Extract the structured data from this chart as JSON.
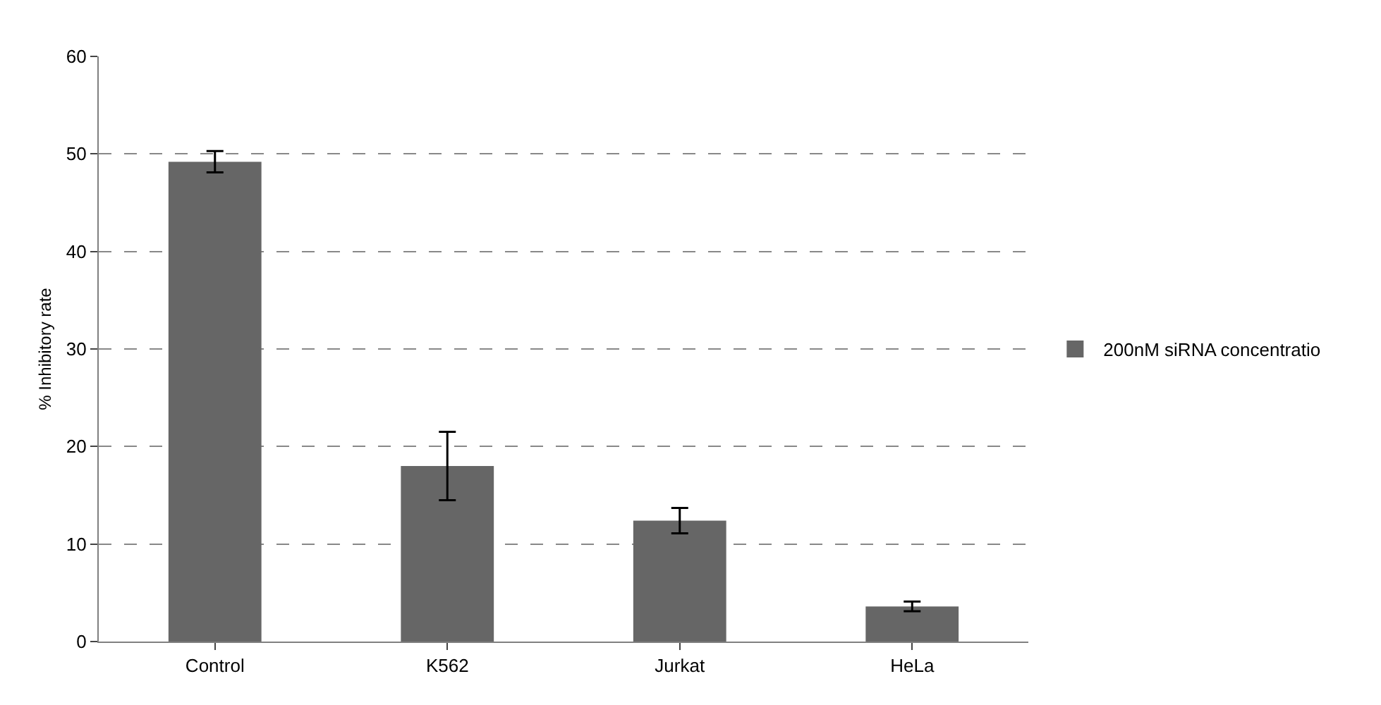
{
  "chart_data": {
    "type": "bar",
    "ylabel": "% Inhibitory rate",
    "categories": [
      "Control",
      "K562",
      "Jurkat",
      "HeLa"
    ],
    "series": [
      {
        "name": "200nM siRNA concentratio",
        "color": "#666666",
        "values": [
          49.2,
          18,
          12.4,
          3.6
        ],
        "errors": [
          1.1,
          3.5,
          1.3,
          0.5
        ]
      }
    ],
    "ylim": [
      0,
      60
    ],
    "yticks": [
      0,
      10,
      20,
      30,
      40,
      50,
      60
    ],
    "grid": "y",
    "legend": "right"
  }
}
